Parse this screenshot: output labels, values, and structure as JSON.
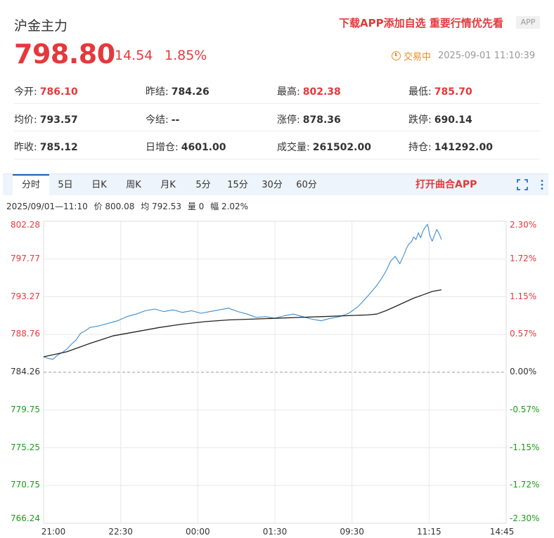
{
  "header": {
    "title": "沪金主力",
    "promo": "下载APP添加自选 重要行情优先看",
    "app_badge": "APP",
    "price": "798.80",
    "change": "14.54",
    "change_pct": "1.85%",
    "status_label": "交易中",
    "datetime": "2025-09-01 11:10:39"
  },
  "stats": [
    [
      {
        "label": "今开:",
        "value": "786.10",
        "up": true
      },
      {
        "label": "昨结:",
        "value": "784.26",
        "up": false
      },
      {
        "label": "最高:",
        "value": "802.38",
        "up": true
      },
      {
        "label": "最低:",
        "value": "785.70",
        "up": true
      }
    ],
    [
      {
        "label": "均价:",
        "value": "793.57",
        "up": false
      },
      {
        "label": "今结:",
        "value": "--",
        "up": false
      },
      {
        "label": "涨停:",
        "value": "878.36",
        "up": false
      },
      {
        "label": "跌停:",
        "value": "690.14",
        "up": false
      }
    ],
    [
      {
        "label": "昨收:",
        "value": "785.12",
        "up": false
      },
      {
        "label": "日增仓:",
        "value": "4601.00",
        "up": false
      },
      {
        "label": "成交量:",
        "value": "261502.00",
        "up": false
      },
      {
        "label": "持仓:",
        "value": "141292.00",
        "up": false
      }
    ]
  ],
  "tabs": [
    "分时",
    "5日",
    "日K",
    "周K",
    "月K",
    "5分",
    "15分",
    "30分",
    "60分"
  ],
  "active_tab": 0,
  "open_app": "打开曲合APP",
  "info": {
    "datetime": "2025/09/01—11:10",
    "price": "价 800.08",
    "avg": "均 792.53",
    "volume": "量 0",
    "range": "幅 2.02%"
  },
  "colors": {
    "up": "#e4393c",
    "down": "#1a9c1a",
    "price_line": "#3d8fd1",
    "avg_line": "#222222",
    "grid": "#e8e8e8"
  },
  "chart_data": {
    "type": "line",
    "y_left_ticks": [
      "802.28",
      "797.77",
      "793.27",
      "788.76",
      "784.26",
      "779.75",
      "775.25",
      "770.75",
      "766.24"
    ],
    "y_right_ticks": [
      "2.30%",
      "1.72%",
      "1.15%",
      "0.57%",
      "0.00%",
      "-0.57%",
      "-1.15%",
      "-1.72%",
      "-2.30%"
    ],
    "x_ticks": [
      "21:00",
      "22:30",
      "00:00",
      "01:30",
      "09:30",
      "11:15",
      "14:45"
    ],
    "ylim": [
      766.24,
      802.28
    ],
    "x_domain": [
      0,
      100
    ],
    "reference": 784.26,
    "series": [
      {
        "x": [
          0,
          1,
          2,
          3,
          4,
          5,
          6,
          7,
          8,
          9,
          10,
          12,
          14,
          16,
          18,
          20,
          22,
          24,
          26,
          28,
          30,
          32,
          34,
          36,
          38,
          40,
          42,
          44,
          46,
          48,
          50,
          52,
          54,
          56,
          58,
          60,
          62,
          64,
          66,
          68,
          70,
          72,
          73,
          74,
          75,
          76,
          77,
          78,
          78.5,
          79,
          79.5,
          80,
          80.5,
          81,
          81.5,
          82,
          82.5,
          83,
          83.5,
          84,
          84.5,
          85,
          85.5,
          86
        ],
        "values": [
          786.1,
          785.9,
          785.8,
          786.3,
          786.6,
          787.0,
          787.6,
          788.1,
          788.9,
          789.2,
          789.6,
          789.8,
          790.1,
          790.4,
          790.9,
          791.2,
          791.6,
          791.8,
          791.5,
          791.7,
          791.4,
          791.6,
          791.3,
          791.5,
          791.7,
          791.9,
          791.5,
          791.2,
          790.8,
          790.9,
          790.7,
          791.0,
          791.2,
          790.9,
          790.6,
          790.4,
          790.7,
          790.9,
          791.3,
          792.1,
          793.3,
          794.6,
          795.4,
          796.3,
          797.5,
          798.1,
          797.2,
          798.4,
          799.1,
          799.6,
          799.8,
          800.4,
          800.1,
          800.9,
          800.3,
          801.1,
          801.6,
          801.9,
          800.6,
          799.9,
          800.6,
          801.3,
          800.8,
          800.1
        ],
        "color": "#3d8fd1"
      },
      {
        "x": [
          0,
          5,
          10,
          15,
          20,
          25,
          30,
          35,
          40,
          45,
          50,
          55,
          60,
          65,
          70,
          72,
          74,
          76,
          78,
          80,
          82,
          84,
          86
        ],
        "values": [
          786.1,
          786.7,
          787.7,
          788.6,
          789.1,
          789.6,
          790.0,
          790.3,
          790.5,
          790.6,
          790.7,
          790.8,
          790.9,
          791.0,
          791.1,
          791.2,
          791.6,
          792.1,
          792.6,
          793.1,
          793.5,
          793.9,
          794.1
        ],
        "color": "#222222"
      }
    ]
  }
}
